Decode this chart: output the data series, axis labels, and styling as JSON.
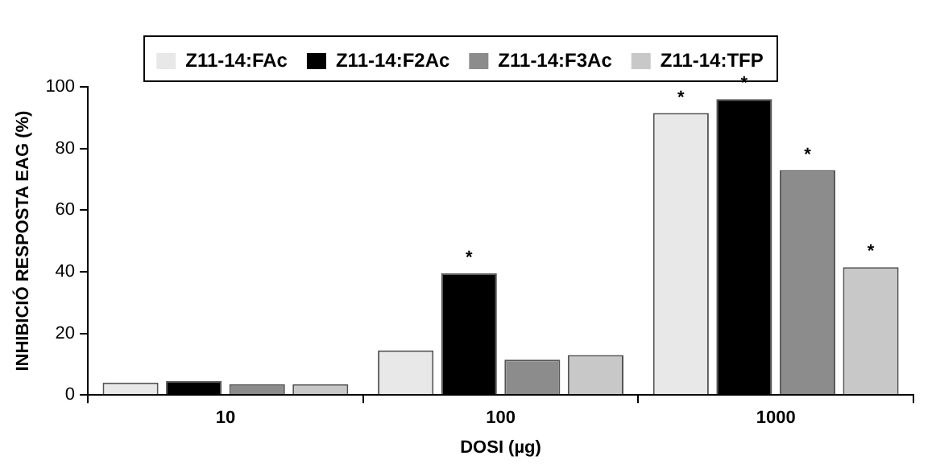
{
  "chart_data": {
    "type": "bar",
    "xlabel": "DOSI (µg)",
    "ylabel": "INHIBICIÓ RESPOSTA EAG (%)",
    "categories": [
      "10",
      "100",
      "1000"
    ],
    "series": [
      {
        "name": "Z11-14:FAc",
        "color": "#e8e8e8",
        "values": [
          4,
          14.5,
          91.5
        ],
        "value_labels": [
          null,
          null,
          "*"
        ]
      },
      {
        "name": "Z11-14:F2Ac",
        "color": "#000000",
        "values": [
          4.5,
          39.5,
          96
        ],
        "value_labels": [
          null,
          "*",
          "*"
        ]
      },
      {
        "name": "Z11-14:F3Ac",
        "color": "#8c8c8c",
        "values": [
          3.5,
          11.5,
          73
        ],
        "value_labels": [
          null,
          null,
          "*"
        ]
      },
      {
        "name": "Z11-14:TFP",
        "color": "#c8c8c8",
        "values": [
          3.5,
          13,
          41.5
        ],
        "value_labels": [
          null,
          null,
          "*"
        ]
      }
    ],
    "ylim": [
      0,
      100
    ],
    "yticks": [
      0,
      20,
      40,
      60,
      80,
      100
    ],
    "grid": false,
    "legend": "top"
  }
}
